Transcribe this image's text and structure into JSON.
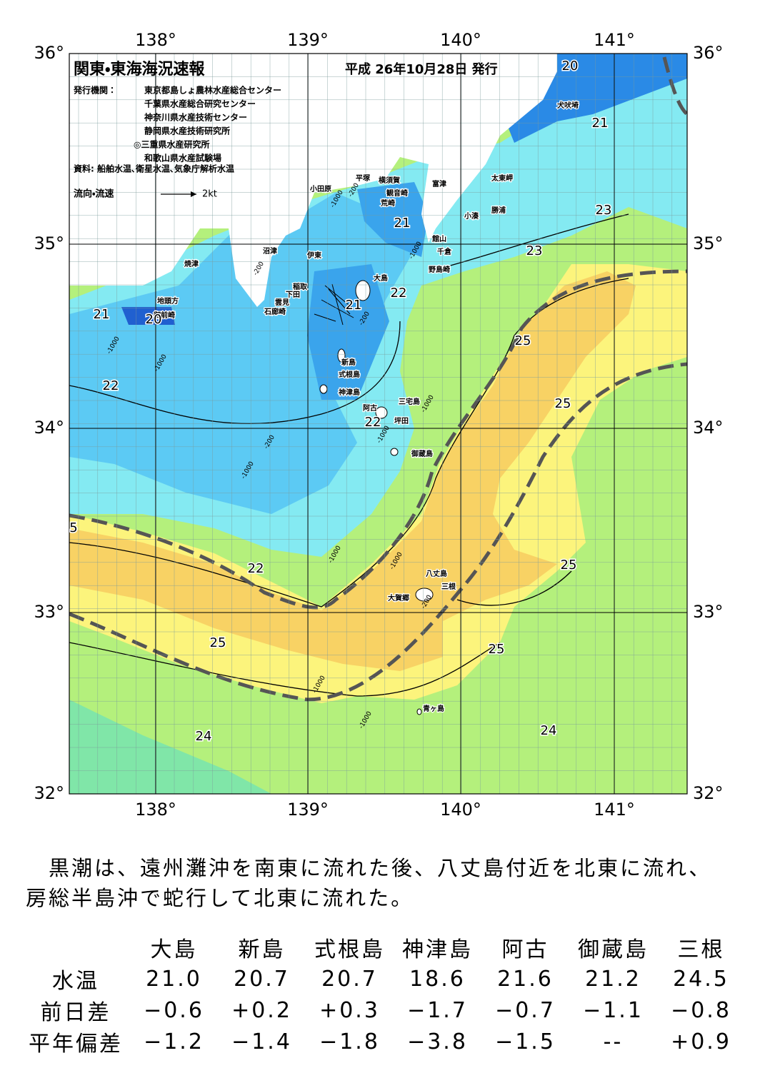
{
  "header": {
    "title": "関東・東海海況速報",
    "issued": "平成 26年10月28日 発行",
    "publisher_label": "発行機関：",
    "publishers": [
      "東京都島しょ農林水産総合センター",
      "千葉県水産総合研究センター",
      "神奈川県水産技術センター",
      "静岡県水産技術研究所",
      "◎三重県水産研究所",
      "和歌山県水産試験場"
    ],
    "source": "資料: 船舶水温､衛星水温､気象庁解析水温",
    "legend_label": "流向・流速",
    "legend_scale": "2kt"
  },
  "axes": {
    "longitudes": [
      "138°",
      "139°",
      "140°",
      "141°"
    ],
    "latitudes": [
      "36°",
      "35°",
      "34°",
      "33°",
      "32°"
    ]
  },
  "places": [
    "犬吠埼",
    "太東岬",
    "勝浦",
    "小湊",
    "富津",
    "館山",
    "千倉",
    "野島崎",
    "横須賀",
    "観音崎",
    "荒崎",
    "平塚",
    "小田原",
    "沼津",
    "伊東",
    "焼津",
    "稲取",
    "下田",
    "雲見",
    "石廊崎",
    "地頭方",
    "御前崎",
    "大島",
    "新島",
    "式根島",
    "神津島",
    "三宅島",
    "阿古",
    "坪田",
    "御蔵島",
    "八丈島",
    "三根",
    "大賀郷",
    "青ヶ島"
  ],
  "isotherms": [
    "20",
    "21",
    "23",
    "23",
    "22",
    "21",
    "21",
    "21",
    "20",
    "22",
    "25",
    "25",
    "22",
    "22",
    "25",
    "25",
    "25",
    "24",
    "24",
    "5"
  ],
  "depths": [
    "-200",
    "-1000",
    "-1000",
    "-200",
    "-1000",
    "-1000",
    "-200",
    "-1000",
    "-200",
    "-1000",
    "-1000",
    "-1000",
    "-1000",
    "-200",
    "-1000",
    "-1000"
  ],
  "summary": "　黒潮は、遠州灘沖を南東に流れた後、八丈島付近を北東に流れ、房総半島沖で蛇行して北東に流れた。",
  "table": {
    "columns": [
      "大島",
      "新島",
      "式根島",
      "神津島",
      "阿古",
      "御蔵島",
      "三根"
    ],
    "rows": [
      {
        "label": "水温",
        "cells": [
          "21.0",
          "20.7",
          "20.7",
          "18.6",
          "21.6",
          "21.2",
          "24.5"
        ]
      },
      {
        "label": "前日差",
        "cells": [
          "−0.6",
          "+0.2",
          "+0.3",
          "−1.7",
          "−0.7",
          "−1.1",
          "−0.8"
        ]
      },
      {
        "label": "平年偏差",
        "cells": [
          "−1.2",
          "−1.4",
          "−1.8",
          "−3.8",
          "−1.5",
          "--",
          "+0.9"
        ]
      }
    ]
  }
}
